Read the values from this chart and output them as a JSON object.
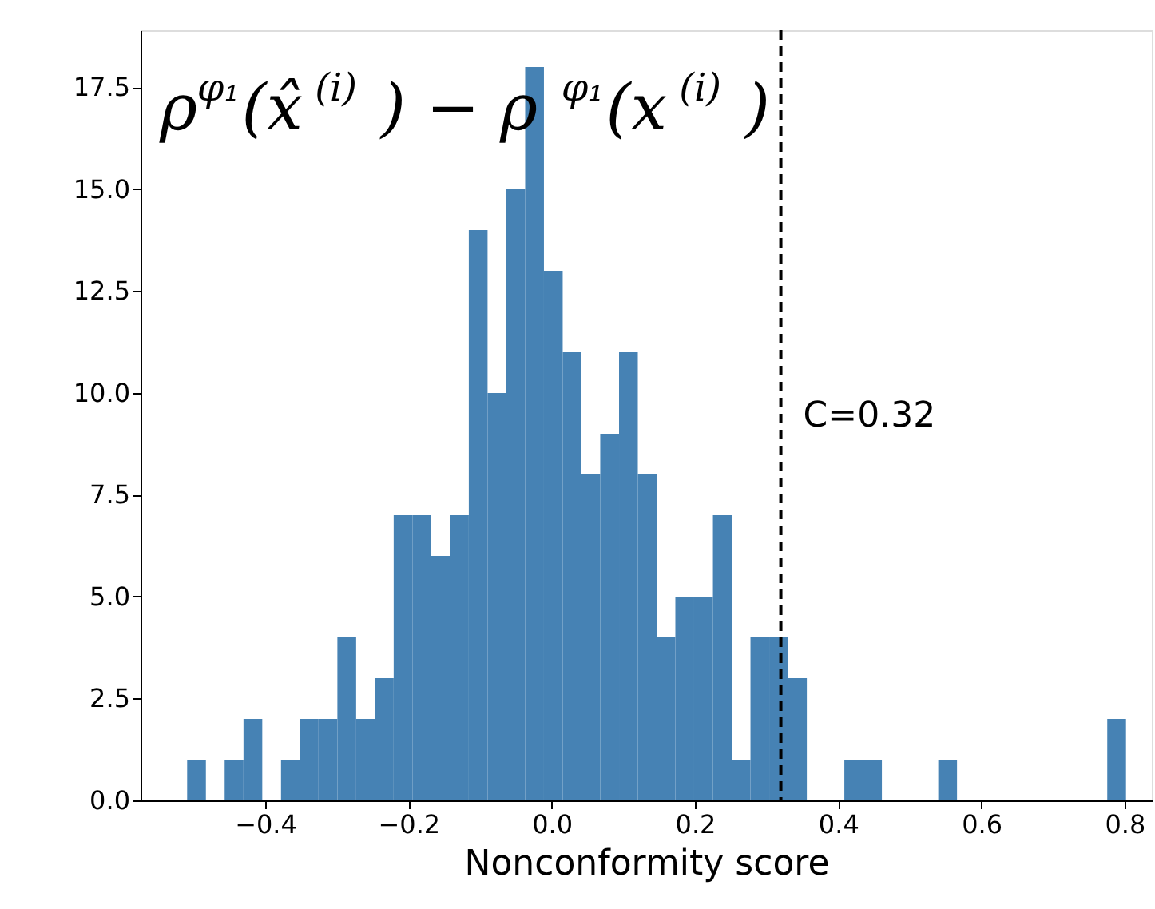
{
  "chart_data": {
    "type": "histogram",
    "title": "ρ$^{φ₁}$(x̂$^{(i)}$) − ρ$^{φ₁}$(x$^{(i)}$)",
    "xlabel": "Nonconformity score",
    "bins": [
      -0.509,
      -0.4828,
      -0.4566,
      -0.4303,
      -0.4041,
      -0.3779,
      -0.3517,
      -0.3255,
      -0.2992,
      -0.273,
      -0.2468,
      -0.2206,
      -0.1944,
      -0.1681,
      -0.1419,
      -0.1157,
      -0.0895,
      -0.0633,
      -0.037,
      -0.0108,
      0.0154,
      0.0416,
      0.0678,
      0.0941,
      0.1203,
      0.1465,
      0.1727,
      0.1989,
      0.2252,
      0.2514,
      0.2776,
      0.3038,
      0.33,
      0.3563,
      0.3825,
      0.4087,
      0.4349,
      0.4611,
      0.4874,
      0.5136,
      0.5398,
      0.566,
      0.5922,
      0.6185,
      0.6447,
      0.6709,
      0.6971,
      0.7233,
      0.7496,
      0.7758,
      0.802
    ],
    "values": [
      1,
      0,
      1,
      2,
      0,
      1,
      2,
      2,
      4,
      2,
      3,
      7,
      7,
      6,
      7,
      14,
      10,
      15,
      18,
      13,
      11,
      8,
      9,
      11,
      8,
      4,
      5,
      5,
      7,
      1,
      4,
      4,
      3,
      0,
      0,
      1,
      1,
      0,
      0,
      0,
      1,
      0,
      0,
      0,
      0,
      0,
      0,
      0,
      0,
      2
    ],
    "color": "#4682b4",
    "xlim": [
      -0.574,
      0.838
    ],
    "ylim": [
      0,
      18.9
    ],
    "xticks": [
      {
        "value": -0.4,
        "label": "−0.4"
      },
      {
        "value": -0.2,
        "label": "−0.2"
      },
      {
        "value": 0,
        "label": "0.0"
      },
      {
        "value": 0.2,
        "label": "0.2"
      },
      {
        "value": 0.4,
        "label": "0.4"
      },
      {
        "value": 0.6,
        "label": "0.6"
      },
      {
        "value": 0.8,
        "label": "0.8"
      }
    ],
    "yticks": [
      {
        "value": 0,
        "label": "0.0"
      },
      {
        "value": 2.5,
        "label": "2.5"
      },
      {
        "value": 5,
        "label": "5.0"
      },
      {
        "value": 7.5,
        "label": "7.5"
      },
      {
        "value": 10,
        "label": "10.0"
      },
      {
        "value": 12.5,
        "label": "12.5"
      },
      {
        "value": 15,
        "label": "15.0"
      },
      {
        "value": 17.5,
        "label": "17.5"
      }
    ],
    "ref_lines": [
      {
        "axis": "x",
        "value": 0.32,
        "label": "C=0.32",
        "color": "#000000",
        "line_style": "dashed"
      }
    ],
    "grid": false
  }
}
